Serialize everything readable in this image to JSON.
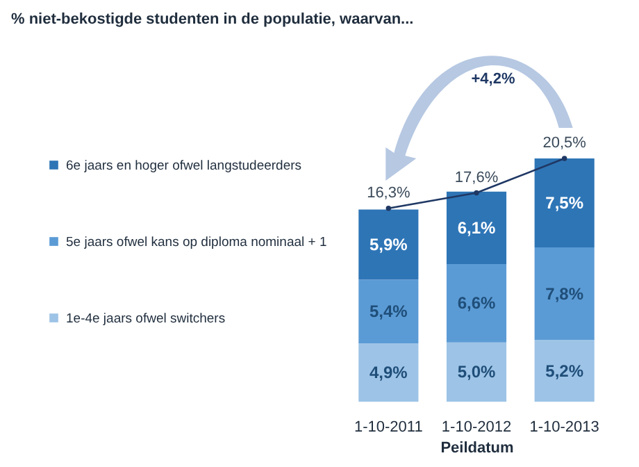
{
  "chart_data": {
    "type": "bar",
    "stacked": true,
    "title": "% niet-bekostigde studenten in de populatie, waarvan...",
    "xlabel": "Peildatum",
    "categories": [
      "1-10-2011",
      "1-10-2012",
      "1-10-2013"
    ],
    "series": [
      {
        "name": "1e-4e jaars ofwel switchers",
        "color": "#9dc3e6",
        "values": [
          4.9,
          5.0,
          5.2
        ],
        "value_labels": [
          "4,9%",
          "5,0%",
          "5,2%"
        ]
      },
      {
        "name": "5e jaars ofwel kans op diploma nominaal + 1",
        "color": "#5b9bd5",
        "values": [
          5.4,
          6.6,
          7.8
        ],
        "value_labels": [
          "5,4%",
          "6,6%",
          "7,8%"
        ]
      },
      {
        "name": "6e jaars en hoger ofwel langstudeerders",
        "color": "#2e75b6",
        "values": [
          5.9,
          6.1,
          7.5
        ],
        "value_labels": [
          "5,9%",
          "6,1%",
          "7,5%"
        ]
      },
      {
        "type": "line",
        "color": "#1f3864",
        "values": [
          16.3,
          17.6,
          20.5
        ],
        "value_labels": [
          "16,3%",
          "17,6%",
          "20,5%"
        ]
      }
    ],
    "marker": "circle",
    "legend": "left",
    "tick_labels": "x",
    "annotations": [
      "+4,2%"
    ]
  }
}
